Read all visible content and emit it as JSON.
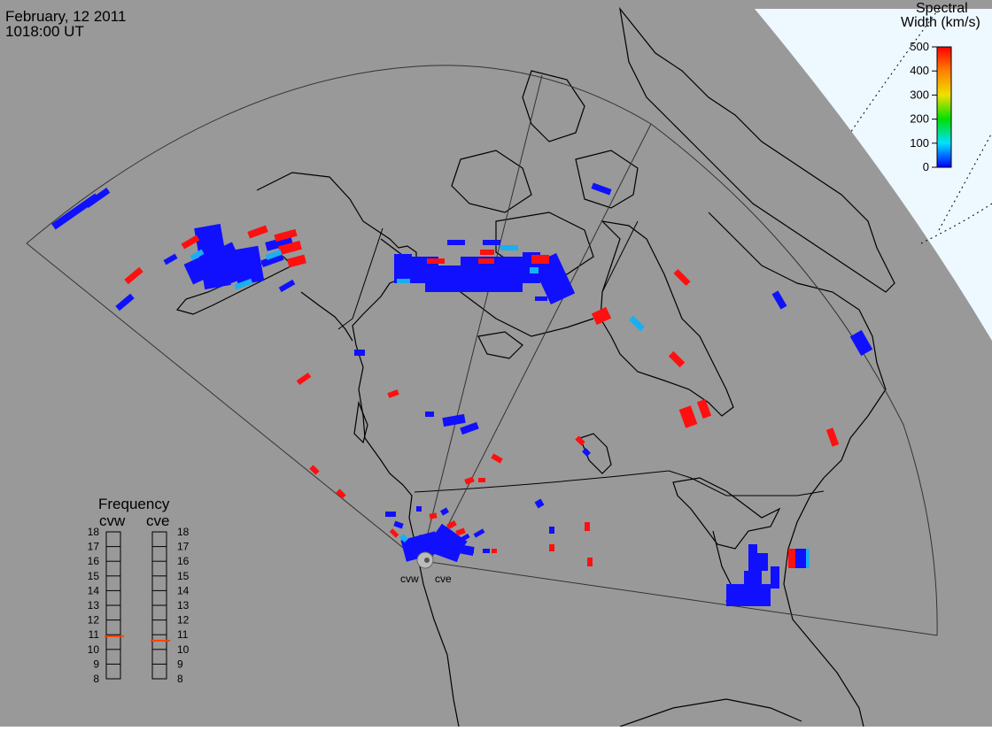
{
  "header": {
    "date": "February, 12 2011",
    "time": "1018:00 UT"
  },
  "colorbar": {
    "title_line1": "Spectral",
    "title_line2": "Width (km/s)",
    "ticks": [
      "500",
      "400",
      "300",
      "200",
      "100",
      "0"
    ]
  },
  "frequency_panel": {
    "title": "Frequency",
    "radars": [
      {
        "name": "cvw",
        "value_mhz": 10.9
      },
      {
        "name": "cve",
        "value_mhz": 10.6
      }
    ],
    "scale": [
      "18",
      "17",
      "16",
      "15",
      "14",
      "13",
      "12",
      "11",
      "10",
      "9",
      "8"
    ]
  },
  "stations": [
    {
      "name": "cvw"
    },
    {
      "name": "cve"
    }
  ],
  "colors": {
    "map_bg": "#999999",
    "polar_region": "#eef8ff",
    "low_width": "#1010ff",
    "high_width": "#ff1010",
    "mid_cyan": "#18b0f0",
    "freq_marker": "#ff4000"
  }
}
